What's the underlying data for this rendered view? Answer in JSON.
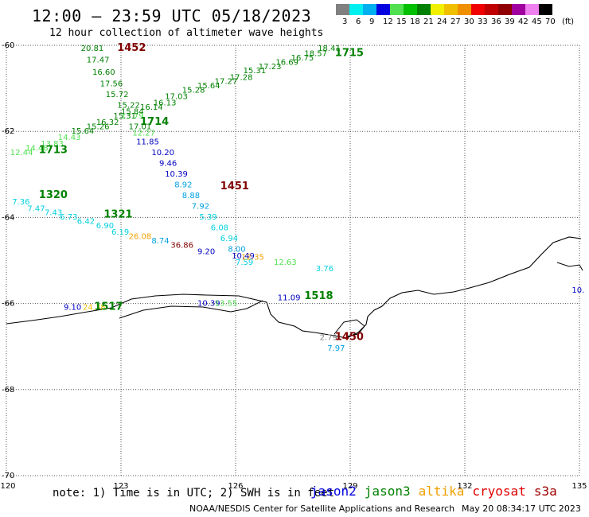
{
  "header": {
    "title": "12:00 – 23:59 UTC 05/18/2023",
    "subtitle": "12 hour collection of altimeter wave heights"
  },
  "colorbar": {
    "colors": [
      "#808080",
      "#00f0f0",
      "#00b0f0",
      "#0000e0",
      "#50e050",
      "#00c000",
      "#008000",
      "#f0f000",
      "#f0c000",
      "#f09000",
      "#f00000",
      "#c00000",
      "#900000",
      "#a000a0",
      "#f080f0",
      "#000000"
    ],
    "labels": [
      "3",
      "6",
      "9",
      "12",
      "15",
      "18",
      "21",
      "24",
      "27",
      "30",
      "33",
      "36",
      "39",
      "42",
      "45",
      "70"
    ],
    "unit": "(ft)"
  },
  "axes": {
    "lon_labels": [
      "120",
      "123",
      "126",
      "129",
      "132",
      "135"
    ],
    "lat_labels": [
      "-60",
      "-62",
      "-64",
      "-66",
      "-68",
      "-70"
    ],
    "lon_range": [
      120,
      135
    ],
    "lat_range": [
      -60,
      -70
    ],
    "grid": true
  },
  "time_labels": [
    {
      "text": "1452",
      "color": "#800000",
      "lon": 122.9,
      "lat": -60.13
    },
    {
      "text": "1715",
      "color": "#008000",
      "lon": 128.6,
      "lat": -60.25
    },
    {
      "text": "1714",
      "color": "#008000",
      "lon": 123.5,
      "lat": -61.85
    },
    {
      "text": "1713",
      "color": "#008000",
      "lon": 120.85,
      "lat": -62.5
    },
    {
      "text": "1451",
      "color": "#800000",
      "lon": 125.6,
      "lat": -63.35
    },
    {
      "text": "1320",
      "color": "#008000",
      "lon": 120.85,
      "lat": -63.55
    },
    {
      "text": "1321",
      "color": "#008000",
      "lon": 122.55,
      "lat": -64.0
    },
    {
      "text": "1518",
      "color": "#008000",
      "lon": 127.8,
      "lat": -65.9
    },
    {
      "text": "1517",
      "color": "#008000",
      "lon": 122.3,
      "lat": -66.15
    },
    {
      "text": "1450",
      "color": "#800000",
      "lon": 128.6,
      "lat": -66.85
    }
  ],
  "wave_heights": [
    {
      "v": "20.81",
      "color": "#008000",
      "lon": 121.95,
      "lat": -60.13
    },
    {
      "v": "17.47",
      "color": "#008000",
      "lon": 122.1,
      "lat": -60.4
    },
    {
      "v": "16.60",
      "color": "#008000",
      "lon": 122.25,
      "lat": -60.68
    },
    {
      "v": "17.56",
      "color": "#008000",
      "lon": 122.45,
      "lat": -60.95
    },
    {
      "v": "15.72",
      "color": "#008000",
      "lon": 122.6,
      "lat": -61.2
    },
    {
      "v": "15.22",
      "color": "#008000",
      "lon": 122.9,
      "lat": -61.45
    },
    {
      "v": "13.79",
      "color": "#50e050",
      "lon": 123.0,
      "lat": -61.7
    },
    {
      "v": "17.01",
      "color": "#008000",
      "lon": 123.2,
      "lat": -61.95
    },
    {
      "v": "12.27",
      "color": "#50e050",
      "lon": 123.3,
      "lat": -62.1
    },
    {
      "v": "11.85",
      "color": "#0000c0",
      "lon": 123.4,
      "lat": -62.3
    },
    {
      "v": "10.20",
      "color": "#0000c0",
      "lon": 123.8,
      "lat": -62.55
    },
    {
      "v": "9.46",
      "color": "#0000c0",
      "lon": 124.0,
      "lat": -62.8
    },
    {
      "v": "10.39",
      "color": "#0000c0",
      "lon": 124.15,
      "lat": -63.05
    },
    {
      "v": "8.92",
      "color": "#00a0e0",
      "lon": 124.4,
      "lat": -63.3
    },
    {
      "v": "8.88",
      "color": "#00a0e0",
      "lon": 124.6,
      "lat": -63.55
    },
    {
      "v": "7.92",
      "color": "#00a0e0",
      "lon": 124.85,
      "lat": -63.8
    },
    {
      "v": "5.39",
      "color": "#00d0e0",
      "lon": 125.05,
      "lat": -64.05
    },
    {
      "v": "6.08",
      "color": "#00d0e0",
      "lon": 125.35,
      "lat": -64.3
    },
    {
      "v": "6.94",
      "color": "#00d0e0",
      "lon": 125.6,
      "lat": -64.55
    },
    {
      "v": "8.00",
      "color": "#00a0e0",
      "lon": 125.8,
      "lat": -64.8
    },
    {
      "v": "10.49",
      "color": "#0000c0",
      "lon": 125.9,
      "lat": -64.95
    },
    {
      "v": "7.59",
      "color": "#00d0e0",
      "lon": 126.0,
      "lat": -65.1
    },
    {
      "v": "12.35",
      "color": "#f0a000",
      "lon": 126.15,
      "lat": -64.98
    },
    {
      "v": "12.63",
      "color": "#50e050",
      "lon": 127.0,
      "lat": -65.1
    },
    {
      "v": "3.76",
      "color": "#00d0e0",
      "lon": 128.1,
      "lat": -65.25
    },
    {
      "v": "7.36",
      "color": "#00d0e0",
      "lon": 120.15,
      "lat": -63.7
    },
    {
      "v": "7.47",
      "color": "#00d0e0",
      "lon": 120.55,
      "lat": -63.85
    },
    {
      "v": "7.43",
      "color": "#00d0e0",
      "lon": 121.0,
      "lat": -63.95
    },
    {
      "v": "6.73",
      "color": "#00d0e0",
      "lon": 121.4,
      "lat": -64.05
    },
    {
      "v": "6.42",
      "color": "#00d0e0",
      "lon": 121.85,
      "lat": -64.15
    },
    {
      "v": "6.90",
      "color": "#00d0e0",
      "lon": 122.35,
      "lat": -64.25
    },
    {
      "v": "6.19",
      "color": "#00d0e0",
      "lon": 122.75,
      "lat": -64.4
    },
    {
      "v": "26.08",
      "color": "#f0a000",
      "lon": 123.2,
      "lat": -64.5
    },
    {
      "v": "8.74",
      "color": "#00a0e0",
      "lon": 123.8,
      "lat": -64.6
    },
    {
      "v": "36.86",
      "color": "#800000",
      "lon": 124.3,
      "lat": -64.7
    },
    {
      "v": "9.20",
      "color": "#0000c0",
      "lon": 125.0,
      "lat": -64.85
    },
    {
      "v": "12.44",
      "color": "#50e050",
      "lon": 120.1,
      "lat": -62.55
    },
    {
      "v": "14.48",
      "color": "#50e050",
      "lon": 120.5,
      "lat": -62.45
    },
    {
      "v": "13.83",
      "color": "#50e050",
      "lon": 120.9,
      "lat": -62.35
    },
    {
      "v": "14.43",
      "color": "#50e050",
      "lon": 121.35,
      "lat": -62.2
    },
    {
      "v": "15.64",
      "color": "#008000",
      "lon": 121.7,
      "lat": -62.05
    },
    {
      "v": "15.26",
      "color": "#008000",
      "lon": 122.1,
      "lat": -61.95
    },
    {
      "v": "16.32",
      "color": "#008000",
      "lon": 122.35,
      "lat": -61.85
    },
    {
      "v": "15.31",
      "color": "#008000",
      "lon": 122.8,
      "lat": -61.7
    },
    {
      "v": "15.84",
      "color": "#008000",
      "lon": 123.0,
      "lat": -61.6
    },
    {
      "v": "16.14",
      "color": "#008000",
      "lon": 123.5,
      "lat": -61.5
    },
    {
      "v": "16.13",
      "color": "#008000",
      "lon": 123.85,
      "lat": -61.4
    },
    {
      "v": "17.03",
      "color": "#008000",
      "lon": 124.15,
      "lat": -61.25
    },
    {
      "v": "15.28",
      "color": "#008000",
      "lon": 124.6,
      "lat": -61.1
    },
    {
      "v": "15.64",
      "color": "#008000",
      "lon": 125.0,
      "lat": -61.0
    },
    {
      "v": "17.27",
      "color": "#008000",
      "lon": 125.45,
      "lat": -60.9
    },
    {
      "v": "17.28",
      "color": "#008000",
      "lon": 125.85,
      "lat": -60.8
    },
    {
      "v": "15.31",
      "color": "#008000",
      "lon": 126.2,
      "lat": -60.65
    },
    {
      "v": "17.23",
      "color": "#008000",
      "lon": 126.6,
      "lat": -60.55
    },
    {
      "v": "16.69",
      "color": "#008000",
      "lon": 127.05,
      "lat": -60.45
    },
    {
      "v": "16.75",
      "color": "#008000",
      "lon": 127.45,
      "lat": -60.35
    },
    {
      "v": "18.57",
      "color": "#008000",
      "lon": 127.8,
      "lat": -60.25
    },
    {
      "v": "18.41",
      "color": "#008000",
      "lon": 128.15,
      "lat": -60.13
    },
    {
      "v": "9.10",
      "color": "#0000c0",
      "lon": 121.5,
      "lat": -66.15
    },
    {
      "v": "24.38",
      "color": "#f0c000",
      "lon": 122.0,
      "lat": -66.15
    },
    {
      "v": "10.39",
      "color": "#0000c0",
      "lon": 125.0,
      "lat": -66.05
    },
    {
      "v": "13.55",
      "color": "#50e050",
      "lon": 125.45,
      "lat": -66.05
    },
    {
      "v": "11.09",
      "color": "#0000c0",
      "lon": 127.1,
      "lat": -65.92
    },
    {
      "v": "2.79",
      "color": "#808080",
      "lon": 128.2,
      "lat": -66.85
    },
    {
      "v": "7.97",
      "color": "#00a0e0",
      "lon": 128.4,
      "lat": -67.1
    },
    {
      "v": "10.",
      "color": "#0000c0",
      "lon": 134.8,
      "lat": -65.75
    }
  ],
  "footer": {
    "note": "note: 1) Time is in UTC; 2) SWH is in feet",
    "satellites": [
      {
        "name": "jason2",
        "color": "#0000e0"
      },
      {
        "name": "jason3",
        "color": "#008000"
      },
      {
        "name": "altika",
        "color": "#f0a000"
      },
      {
        "name": "cryosat",
        "color": "#e00000"
      },
      {
        "name": "s3a",
        "color": "#a00000"
      }
    ],
    "credit": "NOAA/NESDIS Center for Satellite Applications and Research",
    "timestamp": "May 20 08:34:17 UTC 2023"
  }
}
